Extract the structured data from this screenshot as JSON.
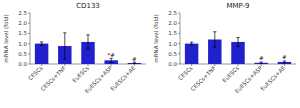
{
  "chart_data": [
    {
      "type": "bar",
      "title": "CD133",
      "categories": [
        "CESCs",
        "CESCs+TNF",
        "EuESCs",
        "EuESCs+ASP",
        "EuESCs+AE"
      ],
      "values": [
        1.0,
        0.88,
        1.08,
        0.18,
        0.05
      ],
      "errors": [
        0.08,
        0.65,
        0.35,
        0.1,
        0.04
      ],
      "annotations": [
        {
          "category": "EuESCs+ASP",
          "text": "*#"
        },
        {
          "category": "EuESCs+AE",
          "text": "#"
        }
      ],
      "y_label": "mRNA level (fold)",
      "color": "#2020cc",
      "ylim": [
        0,
        2.5
      ],
      "yticks": [
        {
          "value": 0.0,
          "label": "0.0"
        },
        0.5,
        {
          "value": 1.0,
          "label": "1.0"
        },
        1.5,
        {
          "value": 2.0,
          "label": "2.0"
        },
        2.5
      ],
      "grid": false
    },
    {
      "type": "bar",
      "title": "MMP-9",
      "categories": [
        "CESCs",
        "CESCs+TNF",
        "EuESCs",
        "EuESCs+ASP",
        "EuESCs+AE"
      ],
      "values": [
        1.0,
        1.2,
        1.08,
        0.06,
        0.1
      ],
      "errors": [
        0.07,
        0.38,
        0.22,
        0.04,
        0.05
      ],
      "annotations": [
        {
          "category": "EuESCs+ASP",
          "text": "#"
        },
        {
          "category": "EuESCs+AE",
          "text": "#"
        }
      ],
      "y_label": "mRNA level (fold)",
      "color": "#2020cc",
      "ylim": [
        0,
        2.5
      ],
      "yticks": [
        {
          "value": 0.0,
          "label": "0.0"
        },
        0.5,
        {
          "value": 1.0,
          "label": "1.0"
        },
        1.5,
        {
          "value": 2.0,
          "label": "2.0"
        },
        2.5
      ],
      "grid": false
    }
  ]
}
